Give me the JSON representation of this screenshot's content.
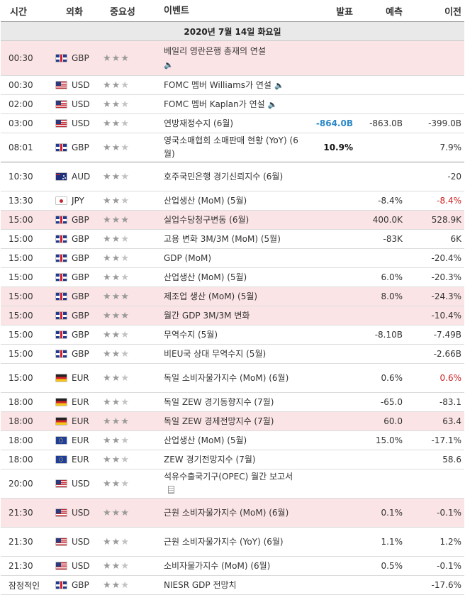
{
  "header": {
    "time": "시간",
    "currency": "외화",
    "importance": "중요성",
    "event": "이벤트",
    "actual": "발표",
    "forecast": "예측",
    "previous": "이전"
  },
  "date": "2020년 7월 14일 화요일",
  "colors": {
    "highlight_row": "#fbe4e6",
    "actual_blue": "#2b88c8",
    "negative_red": "#cc2222"
  },
  "rows": [
    {
      "time": "00:30",
      "flag": "gb",
      "cur": "GBP",
      "stars": 3,
      "event": "베일리 영란은행 총재의 연설",
      "speaker": true,
      "actual": "",
      "forecast": "",
      "previous": "",
      "hi": true
    },
    {
      "time": "00:30",
      "flag": "us",
      "cur": "USD",
      "stars": 2,
      "event": "FOMC 멤버 Williams가 연설",
      "speaker": true,
      "actual": "",
      "forecast": "",
      "previous": ""
    },
    {
      "time": "02:00",
      "flag": "us",
      "cur": "USD",
      "stars": 2,
      "event": "FOMC 멤버 Kaplan가 연설",
      "speaker": true,
      "actual": "",
      "forecast": "",
      "previous": ""
    },
    {
      "time": "03:00",
      "flag": "us",
      "cur": "USD",
      "stars": 2,
      "event": "연방재정수지 (6월)",
      "actual": "-864.0B",
      "actualStyle": "blue",
      "forecast": "-863.0B",
      "previous": "-399.0B"
    },
    {
      "time": "08:01",
      "flag": "gb",
      "cur": "GBP",
      "stars": 2,
      "event": "영국소매협회 소매판매 현황 (YoY) (6월)",
      "actual": "10.9%",
      "actualStyle": "bold",
      "forecast": "",
      "previous": "7.9%",
      "sep": true
    },
    {
      "time": "10:30",
      "flag": "au",
      "cur": "AUD",
      "stars": 2,
      "event": "호주국민은행 경기신뢰지수 (6월)",
      "actual": "",
      "forecast": "",
      "previous": "-20"
    },
    {
      "time": "13:30",
      "flag": "jp",
      "cur": "JPY",
      "stars": 2,
      "event": "산업생산 (MoM) (5월)",
      "actual": "",
      "forecast": "-8.4%",
      "previous": "-8.4%",
      "prevRed": true
    },
    {
      "time": "15:00",
      "flag": "gb",
      "cur": "GBP",
      "stars": 3,
      "event": "실업수당청구변동 (6월)",
      "actual": "",
      "forecast": "400.0K",
      "previous": "528.9K",
      "hi": true
    },
    {
      "time": "15:00",
      "flag": "gb",
      "cur": "GBP",
      "stars": 2,
      "event": "고용 변화 3M/3M (MoM) (5월)",
      "actual": "",
      "forecast": "-83K",
      "previous": "6K"
    },
    {
      "time": "15:00",
      "flag": "gb",
      "cur": "GBP",
      "stars": 2,
      "event": "GDP (MoM)",
      "actual": "",
      "forecast": "",
      "previous": "-20.4%"
    },
    {
      "time": "15:00",
      "flag": "gb",
      "cur": "GBP",
      "stars": 2,
      "event": "산업생산 (MoM) (5월)",
      "actual": "",
      "forecast": "6.0%",
      "previous": "-20.3%"
    },
    {
      "time": "15:00",
      "flag": "gb",
      "cur": "GBP",
      "stars": 3,
      "event": "제조업 생산 (MoM) (5월)",
      "actual": "",
      "forecast": "8.0%",
      "previous": "-24.3%",
      "hi": true
    },
    {
      "time": "15:00",
      "flag": "gb",
      "cur": "GBP",
      "stars": 3,
      "event": "월간 GDP 3M/3M 변화",
      "actual": "",
      "forecast": "",
      "previous": "-10.4%",
      "hi": true
    },
    {
      "time": "15:00",
      "flag": "gb",
      "cur": "GBP",
      "stars": 2,
      "event": "무역수지 (5월)",
      "actual": "",
      "forecast": "-8.10B",
      "previous": "-7.49B"
    },
    {
      "time": "15:00",
      "flag": "gb",
      "cur": "GBP",
      "stars": 2,
      "event": "비EU국 상대 무역수지 (5월)",
      "actual": "",
      "forecast": "",
      "previous": "-2.66B"
    },
    {
      "time": "15:00",
      "flag": "de",
      "cur": "EUR",
      "stars": 2,
      "event": "독일 소비자물가지수 (MoM) (6월)",
      "actual": "",
      "forecast": "0.6%",
      "previous": "0.6%",
      "prevRed": true
    },
    {
      "time": "18:00",
      "flag": "de",
      "cur": "EUR",
      "stars": 2,
      "event": "독일 ZEW 경기동향지수 (7월)",
      "actual": "",
      "forecast": "-65.0",
      "previous": "-83.1"
    },
    {
      "time": "18:00",
      "flag": "de",
      "cur": "EUR",
      "stars": 3,
      "event": "독일 ZEW 경제전망지수 (7월)",
      "actual": "",
      "forecast": "60.0",
      "previous": "63.4",
      "hi": true
    },
    {
      "time": "18:00",
      "flag": "eu",
      "cur": "EUR",
      "stars": 2,
      "event": "산업생산 (MoM) (5월)",
      "actual": "",
      "forecast": "15.0%",
      "previous": "-17.1%"
    },
    {
      "time": "18:00",
      "flag": "eu",
      "cur": "EUR",
      "stars": 2,
      "event": "ZEW 경기전망지수 (7월)",
      "actual": "",
      "forecast": "",
      "previous": "58.6"
    },
    {
      "time": "20:00",
      "flag": "us",
      "cur": "USD",
      "stars": 2,
      "event": "석유수출국기구(OPEC) 월간 보고서",
      "doc": true,
      "actual": "",
      "forecast": "",
      "previous": ""
    },
    {
      "time": "21:30",
      "flag": "us",
      "cur": "USD",
      "stars": 3,
      "event": "근원 소비자물가지수 (MoM) (6월)",
      "actual": "",
      "forecast": "0.1%",
      "previous": "-0.1%",
      "hi": true
    },
    {
      "time": "21:30",
      "flag": "us",
      "cur": "USD",
      "stars": 2,
      "event": "근원 소비자물가지수 (YoY) (6월)",
      "actual": "",
      "forecast": "1.1%",
      "previous": "1.2%"
    },
    {
      "time": "21:30",
      "flag": "us",
      "cur": "USD",
      "stars": 2,
      "event": "소비자물가지수 (MoM) (6월)",
      "actual": "",
      "forecast": "0.5%",
      "previous": "-0.1%"
    },
    {
      "time": "잠정적인",
      "flag": "gb",
      "cur": "GBP",
      "stars": 2,
      "event": "NIESR GDP 전망치",
      "actual": "",
      "forecast": "",
      "previous": "-17.6%"
    }
  ]
}
